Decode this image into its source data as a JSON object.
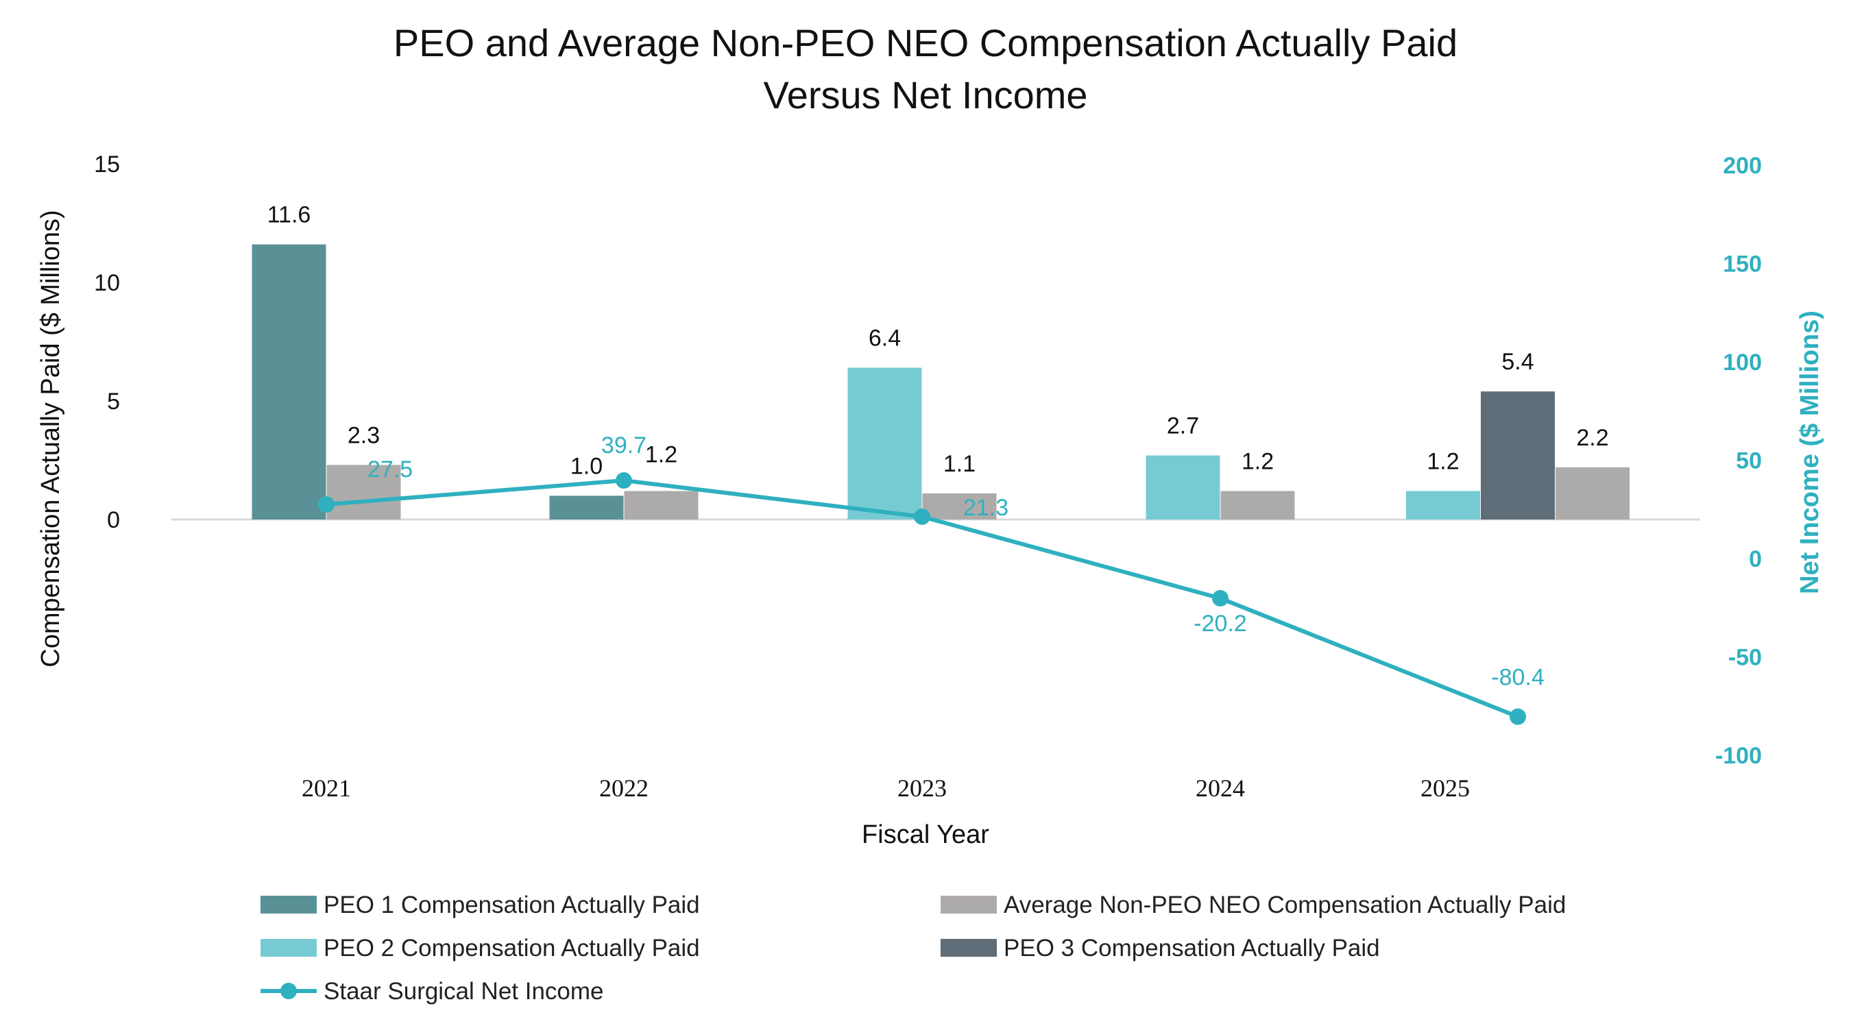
{
  "chart_data": {
    "type": "bar",
    "title": [
      "PEO and Average Non-PEO NEO Compensation Actually Paid",
      "Versus Net Income"
    ],
    "xlabel": "Fiscal Year",
    "ylabel": "Compensation Actually Paid ($ Millions)",
    "y2label": "Net Income ($ Millions)",
    "categories": [
      "2021",
      "2022",
      "2023",
      "2024",
      "2025"
    ],
    "y_ticks": [
      "15",
      "10",
      "5",
      "0"
    ],
    "ylim": [
      0,
      15
    ],
    "y2_ticks": [
      "200",
      "150",
      "100",
      "50",
      "0",
      "-50",
      "-100"
    ],
    "y2lim": [
      -100,
      200
    ],
    "grid": false,
    "legend_position": "bottom",
    "series": [
      {
        "name": "PEO 1 Compensation Actually Paid",
        "type": "bar",
        "axis": "left",
        "color": "#5a9196",
        "values": [
          11.6,
          1.0,
          null,
          null,
          null
        ],
        "labels": [
          "11.6",
          "1.0",
          null,
          null,
          null
        ]
      },
      {
        "name": "PEO 2 Compensation Actually Paid",
        "type": "bar",
        "axis": "left",
        "color": "#76cbd3",
        "values": [
          null,
          null,
          6.4,
          2.7,
          1.2
        ],
        "labels": [
          null,
          null,
          "6.4",
          "2.7",
          "1.2"
        ]
      },
      {
        "name": "PEO 3 Compensation Actually Paid",
        "type": "bar",
        "axis": "left",
        "color": "#5e6d78",
        "values": [
          null,
          null,
          null,
          null,
          5.4
        ],
        "labels": [
          null,
          null,
          null,
          null,
          "5.4"
        ]
      },
      {
        "name": "Average Non-PEO NEO Compensation Actually Paid",
        "type": "bar",
        "axis": "left",
        "color": "#adabaa",
        "values": [
          2.3,
          1.2,
          1.1,
          1.2,
          2.2
        ],
        "labels": [
          "2.3",
          "1.2",
          "1.1",
          "1.2",
          "2.2"
        ]
      },
      {
        "name": "Staar Surgical Net Income",
        "type": "line",
        "axis": "right",
        "color": "#2fb0c0",
        "values": [
          27.5,
          39.7,
          21.3,
          -20.2,
          -80.4
        ],
        "labels": [
          "27.5",
          "39.7",
          "21.3",
          "-20.2",
          "-80.4"
        ]
      }
    ],
    "legend": [
      {
        "name": "PEO 1 Compensation Actually Paid",
        "color": "#5a9196",
        "kind": "bar"
      },
      {
        "name": "Average Non-PEO NEO Compensation Actually Paid",
        "color": "#adabaa",
        "kind": "bar"
      },
      {
        "name": "PEO 2 Compensation Actually Paid",
        "color": "#76cbd3",
        "kind": "bar"
      },
      {
        "name": "PEO 3 Compensation Actually Paid",
        "color": "#5e6d78",
        "kind": "bar"
      },
      {
        "name": "Staar Surgical Net Income",
        "color": "#2fb0c0",
        "kind": "line"
      }
    ]
  }
}
